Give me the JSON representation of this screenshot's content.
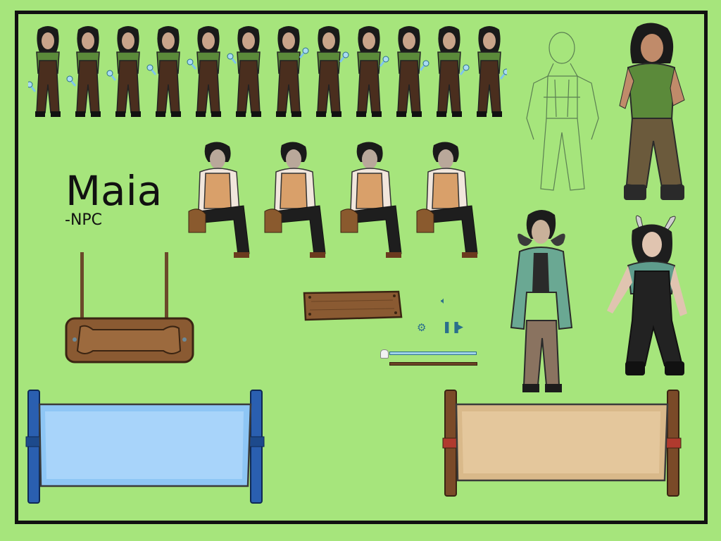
{
  "character": {
    "name": "Maia",
    "role": "-NPC"
  },
  "colors": {
    "background": "#a6e57c",
    "frame": "#111111",
    "blue_banner": "#8ec6f5",
    "tan_banner": "#d9b98a",
    "wood": "#8a5a32",
    "ui_accent": "#2b6f8c"
  },
  "ui_elements": {
    "volume_icon": "speaker-icon",
    "settings_icon": "gear-icon",
    "pause_icon": "pause-icon",
    "play_icon": "play-icon",
    "slider_knob_icon": "ghost-icon"
  },
  "volume_slider": {
    "value": 0.0
  }
}
